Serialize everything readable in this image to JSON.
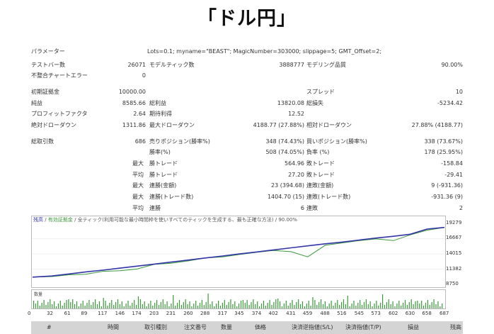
{
  "title": "「ドル円」",
  "report": {
    "parameters_label": "パラメーター",
    "parameters_value": "Lots=0.1; myname=\"BEAST\"; MagicNumber=303000; slippage=5; GMT_Offset=2;",
    "test_bars_label": "テストバー数",
    "test_bars_value": "26071",
    "model_ticks_label": "モデルティック数",
    "model_ticks_value": "3888777",
    "model_quality_label": "モデリング品質",
    "model_quality_value": "90.00%",
    "mismatch_label": "不整合チャートエラー",
    "mismatch_value": "0",
    "initial_deposit_label": "初期証拠金",
    "initial_deposit_value": "10000.00",
    "spread_label": "スプレッド",
    "spread_value": "10",
    "net_profit_label": "純益",
    "net_profit_value": "8585.66",
    "gross_profit_label": "総利益",
    "gross_profit_value": "13820.08",
    "gross_loss_label": "総損失",
    "gross_loss_value": "-5234.42",
    "profit_factor_label": "プロフィットファクタ",
    "profit_factor_value": "2.64",
    "expected_payoff_label": "期待利得",
    "expected_payoff_value": "12.52",
    "abs_dd_label": "絶対ドローダウン",
    "abs_dd_value": "1311.86",
    "max_dd_label": "最大ドローダウン",
    "max_dd_value": "4188.77 (27.88%)",
    "rel_dd_label": "相対ドローダウン",
    "rel_dd_value": "27.88% (4188.77)",
    "total_trades_label": "総取引数",
    "total_trades_value": "686",
    "short_pos_label": "売りポジション(勝率%)",
    "short_pos_value": "348 (74.43%)",
    "long_pos_label": "買いポジション(勝率%)",
    "long_pos_value": "338 (73.67%)",
    "win_rate_label": "勝率(%)",
    "win_rate_value": "508 (74.05%)",
    "loss_rate_label": "負率 (%)",
    "loss_rate_value": "178 (25.95%)",
    "max_label_1": "最大",
    "win_trade_label": "勝トレード",
    "max_win_value": "564.96",
    "loss_trade_label": "敗トレード",
    "max_loss_value": "-158.84",
    "avg_label_1": "平均",
    "avg_win_trade_label": "勝トレード",
    "avg_win_value": "27.20",
    "avg_loss_trade_label": "敗トレード",
    "avg_loss_value": "-29.41",
    "max_label_2": "最大",
    "consec_win_amount_label": "連勝(金額)",
    "consec_win_amount_value": "23 (394.68)",
    "consec_loss_amount_label": "連敗(金額)",
    "consec_loss_amount_value": "9 (-931.36)",
    "max_label_3": "最大",
    "consec_win_trades_label": "連勝(トレード数)",
    "consec_win_trades_value": "1404.70 (15)",
    "consec_loss_trades_label": "連敗(トレード数)",
    "consec_loss_trades_value": "-931.36 (9)",
    "avg_label_2": "平均",
    "avg_consec_win_label": "連勝",
    "avg_consec_win_value": "6",
    "avg_consec_loss_label": "連敗",
    "avg_consec_loss_value": "2"
  },
  "chart": {
    "legend_balance": "残高",
    "legend_equity": "有効証拠金",
    "legend_rest": "全ティック(利用可能な最小時間枠を使いすべてのティックを生成する、最も正確な方法) / 90.00%",
    "y_ticks": [
      "19279",
      "16667",
      "14015",
      "11382",
      "8750"
    ],
    "x_ticks": [
      "0",
      "32",
      "61",
      "89",
      "117",
      "146",
      "174",
      "203",
      "231",
      "260",
      "288",
      "317",
      "345",
      "374",
      "402",
      "431",
      "459",
      "488",
      "516",
      "545",
      "573",
      "602",
      "630",
      "658",
      "687"
    ],
    "volume_label": "数量"
  },
  "chart_data": {
    "type": "line",
    "x": [
      0,
      32,
      61,
      89,
      117,
      146,
      174,
      203,
      231,
      260,
      288,
      317,
      345,
      374,
      402,
      431,
      459,
      488,
      516,
      545,
      573,
      602,
      630,
      658,
      687
    ],
    "series": [
      {
        "name": "残高",
        "values": [
          10000,
          10200,
          10550,
          10900,
          11200,
          11550,
          11900,
          12250,
          12600,
          12950,
          13300,
          13650,
          14000,
          14350,
          14700,
          15050,
          15400,
          15750,
          16050,
          16400,
          16750,
          17050,
          17400,
          18300,
          18586
        ]
      },
      {
        "name": "有効証拠金",
        "values": [
          10000,
          10100,
          10400,
          10500,
          11000,
          11100,
          11400,
          12200,
          12400,
          12800,
          13300,
          13500,
          13900,
          14300,
          14600,
          14400,
          13500,
          15500,
          15900,
          16300,
          16600,
          16300,
          17300,
          18100,
          18586
        ]
      }
    ],
    "ylim": [
      8750,
      19279
    ],
    "colors": {
      "balance": "#3336a8",
      "equity": "#3a9a3a",
      "volume": "#3a9a3a"
    }
  },
  "table_header": {
    "col_num": "#",
    "col_time": "時間",
    "col_type": "取引種別",
    "col_order": "注文番号",
    "col_volume": "数量",
    "col_price": "価格",
    "col_sl": "決済逆指値(S/L)",
    "col_tp": "決済指値(T/P)",
    "col_profit": "損益",
    "col_balance": "残高"
  }
}
